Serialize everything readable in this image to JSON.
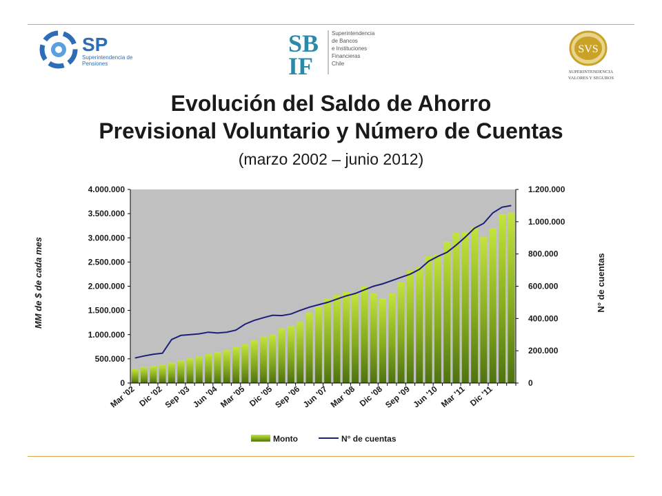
{
  "title": {
    "line1": "Evolución del Saldo de Ahorro",
    "line2": "Previsional Voluntario y Número de Cuentas",
    "subtitle": "(marzo 2002 – junio 2012)"
  },
  "logos": {
    "sp": {
      "text": "SP",
      "subtext_1": "Superintendencia de",
      "subtext_2": "Pensiones"
    },
    "sbif": {
      "mark_top": "SB",
      "mark_bottom": "IF",
      "lines": [
        "Superintendencia",
        "de Bancos",
        "e Instituciones",
        "Financieras",
        "Chile"
      ]
    },
    "svs": {
      "mark": "SVS",
      "lines": [
        "SUPERINTENDENCIA",
        "VALORES Y SEGUROS"
      ]
    }
  },
  "colors": {
    "rule": "#d9a441",
    "plot_bg": "#c0c0c0",
    "bar_light": "#b4d832",
    "bar_dark": "#4e7210",
    "line": "#1c1f7a",
    "sp_blue": "#2d6db5",
    "sbif_teal": "#2b8aa8",
    "svs_gold": "#c9a227"
  },
  "chart_data": {
    "type": "bar",
    "title": "",
    "xlabel": "",
    "ylabel": "MM de $ de cada mes",
    "y2label": "N° de cuentas",
    "ylim": [
      0,
      4000000
    ],
    "y2lim": [
      0,
      1200000
    ],
    "yticks": [
      "0",
      "500.000",
      "1.000.000",
      "1.500.000",
      "2.000.000",
      "2.500.000",
      "3.000.000",
      "3.500.000",
      "4.000.000"
    ],
    "y2ticks": [
      "0",
      "200.000",
      "400.000",
      "600.000",
      "800.000",
      "1.000.000",
      "1.200.000"
    ],
    "x_tick_labels": [
      "Mar '02",
      "Dic '02",
      "Sep '03",
      "Jun '04",
      "Mar '05",
      "Dic '05",
      "Sep '06",
      "Jun '07",
      "Mar '08",
      "Dic '08",
      "Sep '09",
      "Jun '10",
      "Mar '11",
      "Dic '11"
    ],
    "x_tick_every": 3,
    "categories": [
      "Mar '02",
      "Jun '02",
      "Sep '02",
      "Dic '02",
      "Mar '03",
      "Jun '03",
      "Sep '03",
      "Dic '03",
      "Mar '04",
      "Jun '04",
      "Sep '04",
      "Dic '04",
      "Mar '05",
      "Jun '05",
      "Sep '05",
      "Dic '05",
      "Mar '06",
      "Jun '06",
      "Sep '06",
      "Dic '06",
      "Mar '07",
      "Jun '07",
      "Sep '07",
      "Dic '07",
      "Mar '08",
      "Jun '08",
      "Sep '08",
      "Dic '08",
      "Mar '09",
      "Jun '09",
      "Sep '09",
      "Dic '09",
      "Mar '10",
      "Jun '10",
      "Sep '10",
      "Dic '10",
      "Mar '11",
      "Jun '11",
      "Sep '11",
      "Dic '11",
      "Mar '12",
      "Jun '12"
    ],
    "series": [
      {
        "name": "Monto",
        "type": "bar",
        "axis": "left",
        "values": [
          290000,
          330000,
          350000,
          380000,
          420000,
          470000,
          510000,
          550000,
          600000,
          640000,
          680000,
          740000,
          800000,
          880000,
          960000,
          1000000,
          1130000,
          1180000,
          1270000,
          1450000,
          1580000,
          1750000,
          1820000,
          1880000,
          1850000,
          2000000,
          1850000,
          1750000,
          1850000,
          2080000,
          2330000,
          2400000,
          2620000,
          2660000,
          2920000,
          3100000,
          3120000,
          3230000,
          3020000,
          3200000,
          3490000,
          3520000
        ]
      },
      {
        "name": "N° de cuentas",
        "type": "line",
        "axis": "right",
        "values": [
          155000,
          168000,
          178000,
          185000,
          270000,
          295000,
          300000,
          305000,
          315000,
          310000,
          315000,
          328000,
          365000,
          388000,
          405000,
          420000,
          418000,
          428000,
          450000,
          470000,
          485000,
          500000,
          520000,
          540000,
          555000,
          578000,
          600000,
          615000,
          635000,
          655000,
          675000,
          705000,
          755000,
          785000,
          810000,
          855000,
          905000,
          960000,
          990000,
          1055000,
          1090000,
          1100000
        ]
      }
    ],
    "legend": {
      "position": "bottom",
      "entries": [
        "Monto",
        "N° de cuentas"
      ]
    },
    "grid": false
  }
}
